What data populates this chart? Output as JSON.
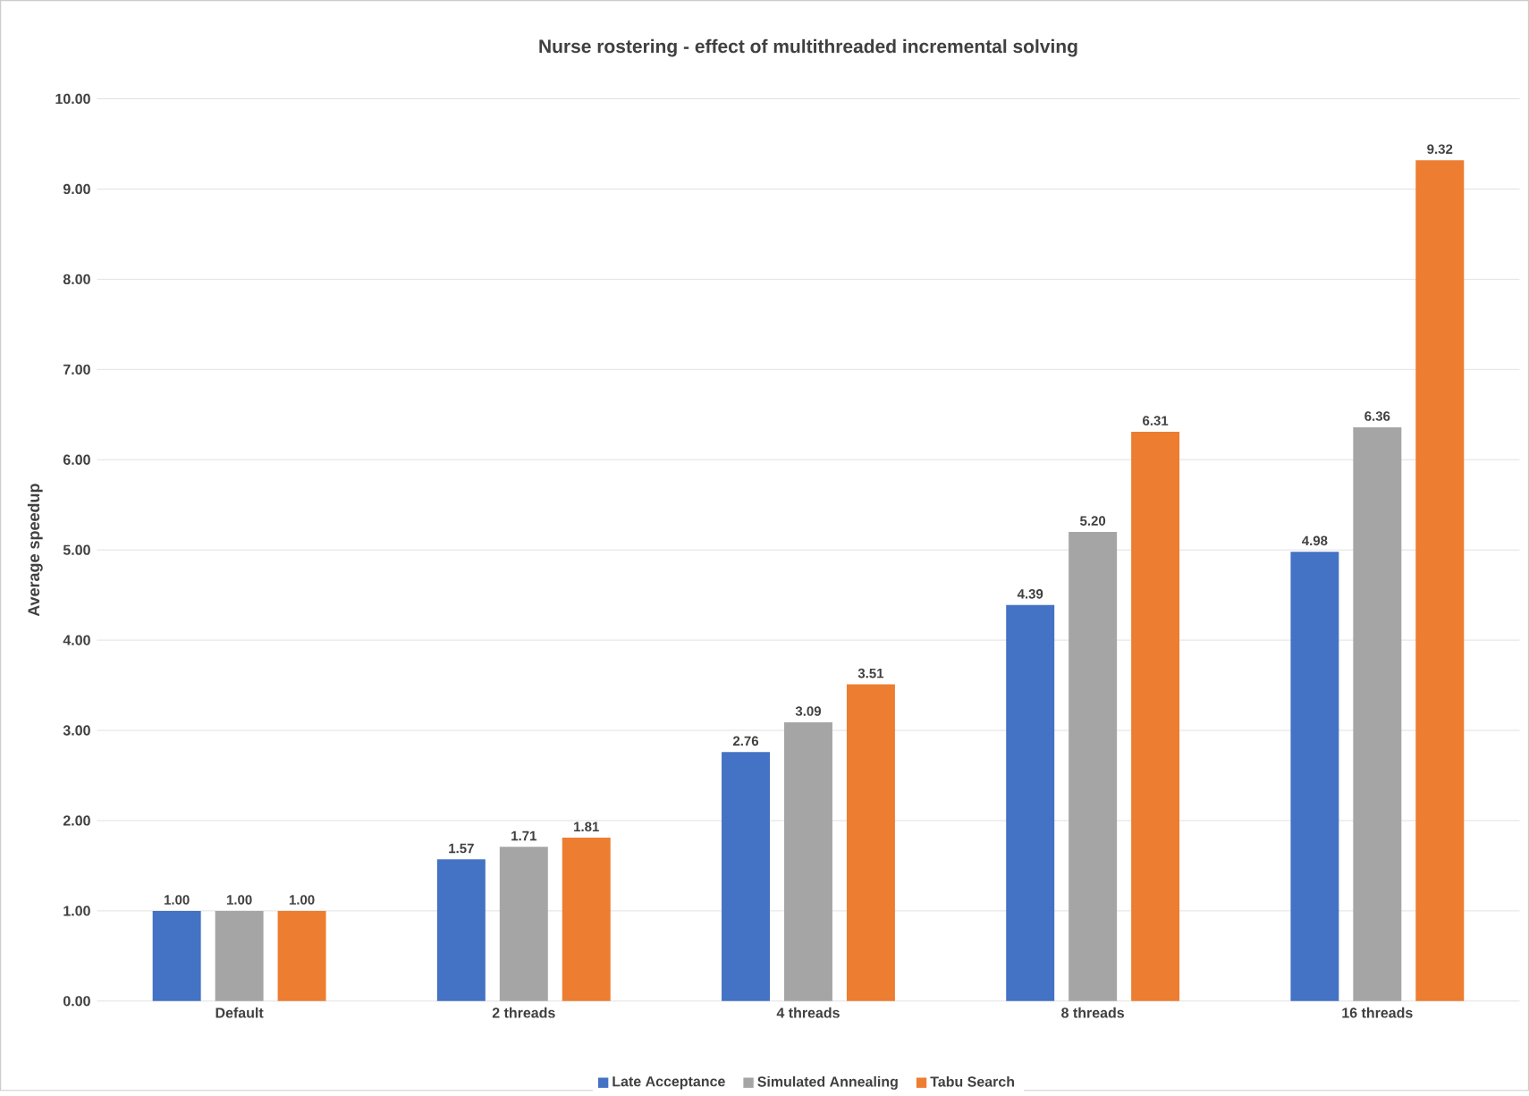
{
  "chart_data": {
    "type": "bar",
    "title": "Nurse rostering - effect of multithreaded incremental solving",
    "ylabel": "Average speedup",
    "categories": [
      "Default",
      "2 threads",
      "4 threads",
      "8 threads",
      "16 threads"
    ],
    "series": [
      {
        "name": "Late Acceptance",
        "color": "#4472c4",
        "values": [
          1.0,
          1.57,
          2.76,
          4.39,
          4.98
        ],
        "value_labels": [
          "1.00",
          "1.57",
          "2.76",
          "4.39",
          "4.98"
        ]
      },
      {
        "name": "Simulated Annealing",
        "color": "#a5a5a5",
        "values": [
          1.0,
          1.71,
          3.09,
          5.2,
          6.36
        ],
        "value_labels": [
          "1.00",
          "1.71",
          "3.09",
          "5.20",
          "6.36"
        ]
      },
      {
        "name": "Tabu Search",
        "color": "#ed7d31",
        "values": [
          1.0,
          1.81,
          3.51,
          6.31,
          9.32
        ],
        "value_labels": [
          "1.00",
          "1.81",
          "3.51",
          "6.31",
          "9.32"
        ]
      }
    ],
    "ylim": [
      0,
      10
    ],
    "yticks": [
      {
        "value": 0,
        "label": "0.00"
      },
      {
        "value": 1,
        "label": "1.00"
      },
      {
        "value": 2,
        "label": "2.00"
      },
      {
        "value": 3,
        "label": "3.00"
      },
      {
        "value": 4,
        "label": "4.00"
      },
      {
        "value": 5,
        "label": "5.00"
      },
      {
        "value": 6,
        "label": "6.00"
      },
      {
        "value": 7,
        "label": "7.00"
      },
      {
        "value": 8,
        "label": "8.00"
      },
      {
        "value": 9,
        "label": "9.00"
      },
      {
        "value": 10,
        "label": "10.00"
      }
    ],
    "grid": "y",
    "legend": "bottom"
  }
}
